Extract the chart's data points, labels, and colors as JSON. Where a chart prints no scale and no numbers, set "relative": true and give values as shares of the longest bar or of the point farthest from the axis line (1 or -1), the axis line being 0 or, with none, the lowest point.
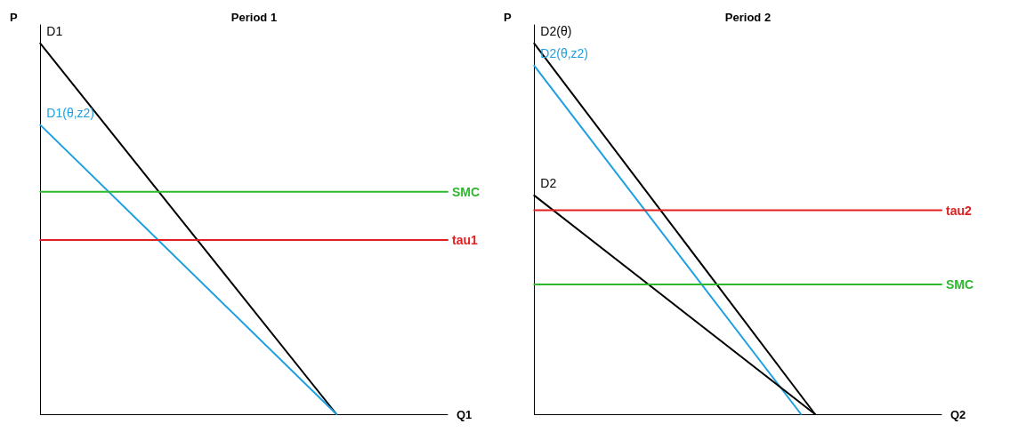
{
  "chart_data": [
    {
      "type": "line",
      "title": "Period 1",
      "xlabel": "Q1",
      "ylabel": "P",
      "relative": true,
      "grid": false,
      "legend": false,
      "marker": "none",
      "line_style": "solid",
      "categories": [
        null,
        null,
        null,
        null,
        null,
        null,
        null,
        null,
        null,
        null,
        null,
        null
      ],
      "series": [
        {
          "name": "D1",
          "color": "#000000",
          "values": [
            1,
            null,
            null,
            null,
            null,
            null,
            null,
            null,
            0,
            null,
            null,
            null
          ]
        },
        {
          "name": "D1(θ,z2)",
          "color": "#1ea0e0",
          "values": [
            0.78,
            null,
            null,
            null,
            null,
            null,
            null,
            null,
            0,
            null,
            null,
            null
          ]
        },
        {
          "name": "SMC",
          "color": "#2eb82e",
          "values": [
            0.6,
            null,
            null,
            null,
            null,
            null,
            null,
            null,
            null,
            null,
            null,
            0.6
          ]
        },
        {
          "name": "tau1",
          "color": "#e02020",
          "values": [
            0.47,
            null,
            null,
            null,
            null,
            null,
            null,
            null,
            null,
            null,
            null,
            0.47
          ]
        }
      ]
    },
    {
      "type": "line",
      "title": "Period 2",
      "xlabel": "Q2",
      "ylabel": "P",
      "relative": true,
      "grid": false,
      "legend": false,
      "marker": "none",
      "line_style": "solid",
      "categories": [
        null,
        null,
        null,
        null,
        null,
        null,
        null,
        null,
        null,
        null,
        null,
        null,
        null,
        null,
        null,
        null,
        null,
        null,
        null,
        null,
        null,
        null,
        null,
        null,
        null,
        null,
        null,
        null,
        null,
        null
      ],
      "series": [
        {
          "name": "D2(θ)",
          "color": "#000000",
          "values": [
            1,
            null,
            null,
            null,
            null,
            null,
            null,
            null,
            null,
            null,
            null,
            null,
            null,
            null,
            null,
            null,
            null,
            null,
            null,
            null,
            0,
            null,
            null,
            null,
            null,
            null,
            null,
            null,
            null,
            null
          ]
        },
        {
          "name": "D2(θ,z2)",
          "color": "#1ea0e0",
          "values": [
            0.94,
            null,
            null,
            null,
            null,
            null,
            null,
            null,
            null,
            null,
            null,
            null,
            null,
            null,
            null,
            null,
            null,
            null,
            null,
            0,
            null,
            null,
            null,
            null,
            null,
            null,
            null,
            null,
            null,
            null
          ]
        },
        {
          "name": "D2",
          "color": "#000000",
          "values": [
            0.59,
            null,
            null,
            null,
            null,
            null,
            null,
            null,
            null,
            null,
            null,
            null,
            null,
            null,
            null,
            null,
            null,
            null,
            null,
            null,
            0,
            null,
            null,
            null,
            null,
            null,
            null,
            null,
            null,
            null
          ]
        },
        {
          "name": "tau2",
          "color": "#e02020",
          "values": [
            0.55,
            null,
            null,
            null,
            null,
            null,
            null,
            null,
            null,
            null,
            null,
            null,
            null,
            null,
            null,
            null,
            null,
            null,
            null,
            null,
            null,
            null,
            null,
            null,
            null,
            null,
            null,
            null,
            null,
            0.55
          ]
        },
        {
          "name": "SMC",
          "color": "#2eb82e",
          "values": [
            0.35,
            null,
            null,
            null,
            null,
            null,
            null,
            null,
            null,
            null,
            null,
            null,
            null,
            null,
            null,
            null,
            null,
            null,
            null,
            null,
            null,
            null,
            null,
            null,
            null,
            null,
            null,
            null,
            null,
            0.35
          ]
        }
      ]
    }
  ]
}
